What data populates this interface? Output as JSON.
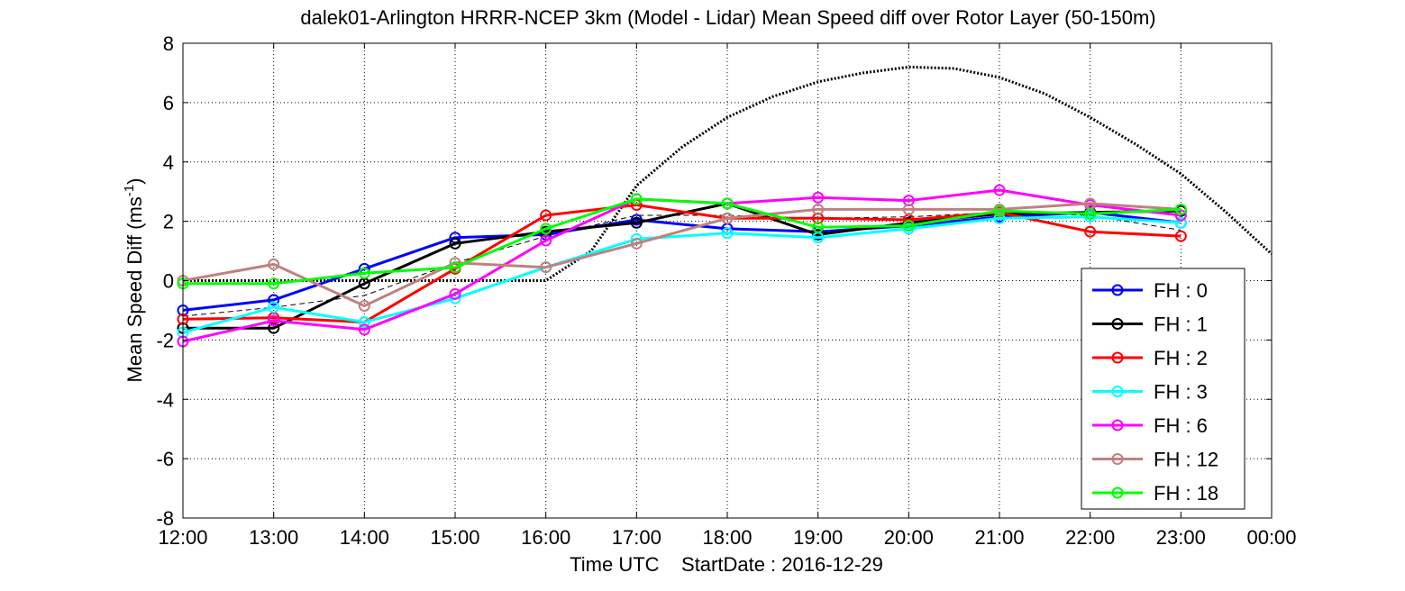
{
  "chart_data": {
    "type": "line",
    "title": "dalek01-Arlington HRRR-NCEP 3km (Model - Lidar) Mean Speed diff over Rotor Layer (50-150m)",
    "xlabel": "Time UTC    StartDate : 2016-12-29",
    "ylabel_main": "Mean Speed Diff (ms",
    "ylabel_sup": "-1",
    "ylabel_close": ")",
    "x_ticks": [
      "12:00",
      "13:00",
      "14:00",
      "15:00",
      "16:00",
      "17:00",
      "18:00",
      "19:00",
      "20:00",
      "21:00",
      "22:00",
      "23:00",
      "00:00"
    ],
    "y_ticks": [
      "8",
      "6",
      "4",
      "2",
      "0",
      "-2",
      "-4",
      "-6",
      "-8"
    ],
    "xlim": [
      12,
      24
    ],
    "ylim": [
      -8,
      8
    ],
    "grid": "dotted",
    "legend_position": "lower-right",
    "x": [
      12,
      13,
      14,
      15,
      16,
      17,
      18,
      19,
      20,
      21,
      22,
      23
    ],
    "series": [
      {
        "name": "FH : 0",
        "color": "#0000ff",
        "values": [
          -1.0,
          -0.65,
          0.4,
          1.45,
          1.55,
          2.05,
          1.75,
          1.65,
          1.85,
          2.15,
          2.3,
          1.95
        ]
      },
      {
        "name": "FH : 1",
        "color": "#000000",
        "values": [
          -1.6,
          -1.6,
          -0.1,
          1.25,
          1.65,
          1.95,
          2.6,
          1.55,
          1.95,
          2.25,
          2.3,
          2.35
        ]
      },
      {
        "name": "FH : 2",
        "color": "#ff0000",
        "values": [
          -1.3,
          -1.25,
          -1.4,
          0.4,
          2.2,
          2.55,
          2.1,
          2.1,
          2.05,
          2.3,
          1.65,
          1.5
        ]
      },
      {
        "name": "FH : 3",
        "color": "#00ffff",
        "values": [
          -1.75,
          -0.9,
          -1.4,
          -0.6,
          0.45,
          1.4,
          1.6,
          1.45,
          1.75,
          2.1,
          2.15,
          1.95
        ]
      },
      {
        "name": "FH : 6",
        "color": "#ff00ff",
        "values": [
          -2.05,
          -1.35,
          -1.65,
          -0.45,
          1.35,
          2.75,
          2.6,
          2.8,
          2.7,
          3.05,
          2.55,
          2.2
        ]
      },
      {
        "name": "FH : 12",
        "color": "#c08080",
        "values": [
          0.0,
          0.55,
          -0.85,
          0.6,
          0.45,
          1.25,
          2.1,
          2.4,
          2.4,
          2.4,
          2.6,
          2.4
        ]
      },
      {
        "name": "FH : 18",
        "color": "#00ff00",
        "values": [
          -0.1,
          -0.1,
          0.25,
          0.45,
          1.75,
          2.75,
          2.6,
          1.8,
          1.85,
          2.35,
          2.25,
          2.4
        ]
      }
    ],
    "extra_dotted_curves": [
      {
        "style": "dotted-thick",
        "color": "#000000",
        "x": [
          12,
          13,
          14,
          15,
          16,
          16.5,
          17,
          17.5,
          18,
          18.5,
          19,
          19.5,
          20,
          20.5,
          21,
          21.5,
          22,
          22.5,
          23,
          23.5,
          24
        ],
        "values": [
          0,
          0,
          0,
          0,
          0,
          1.0,
          3.2,
          4.5,
          5.5,
          6.2,
          6.7,
          7.0,
          7.2,
          7.15,
          6.85,
          6.3,
          5.5,
          4.6,
          3.6,
          2.3,
          0.9
        ]
      },
      {
        "style": "dashed-thin",
        "color": "#000000",
        "x": [
          12,
          13,
          14,
          15,
          16,
          17,
          18,
          19,
          20,
          21,
          22,
          23
        ],
        "values": [
          -1.2,
          -0.9,
          -0.5,
          0.6,
          1.5,
          2.2,
          2.2,
          2.1,
          2.15,
          2.3,
          2.2,
          1.7
        ]
      }
    ]
  }
}
